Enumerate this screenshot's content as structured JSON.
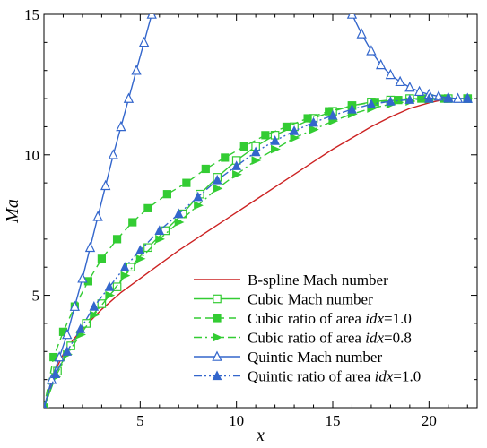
{
  "chart_data": {
    "type": "line",
    "xlabel": "x",
    "ylabel": "Ma",
    "xlim": [
      0,
      22.5
    ],
    "ylim": [
      1,
      15
    ],
    "xticks": [
      5,
      10,
      15,
      20
    ],
    "yticks": [
      5,
      10,
      15
    ],
    "grid": false,
    "legend_position": "bottom-right",
    "series": [
      {
        "name": "B-spline Mach number",
        "color": "#cc2222",
        "style": "solid",
        "marker": "none",
        "x": [
          0,
          0.5,
          1,
          1.5,
          2,
          3,
          4,
          5,
          6,
          7,
          8,
          9,
          10,
          11,
          12,
          13,
          14,
          15,
          16,
          17,
          18,
          19,
          20,
          21,
          22
        ],
        "y": [
          1,
          2.2,
          2.9,
          3.4,
          3.8,
          4.5,
          5.1,
          5.6,
          6.1,
          6.6,
          7.05,
          7.5,
          7.95,
          8.4,
          8.85,
          9.3,
          9.75,
          10.2,
          10.6,
          11.0,
          11.35,
          11.65,
          11.85,
          12.0,
          12.0
        ]
      },
      {
        "name": "Cubic Mach number",
        "color": "#33cc33",
        "style": "solid",
        "marker": "open-square",
        "x": [
          0,
          0.7,
          1.4,
          2.2,
          3,
          3.8,
          4.5,
          5.4,
          6.3,
          7.2,
          8.1,
          9,
          10,
          11,
          12,
          13,
          14,
          15,
          16,
          17,
          18,
          19,
          20,
          21,
          22
        ],
        "y": [
          1,
          2.3,
          3.2,
          4.0,
          4.7,
          5.3,
          6.0,
          6.7,
          7.3,
          7.9,
          8.6,
          9.2,
          9.8,
          10.3,
          10.7,
          11.0,
          11.3,
          11.55,
          11.75,
          11.88,
          11.95,
          12.0,
          12.0,
          12.0,
          12.0
        ]
      },
      {
        "name": "Cubic ratio of area idx=1.0",
        "color": "#33cc33",
        "style": "dashed",
        "marker": "filled-square",
        "x": [
          0,
          0.5,
          1,
          1.6,
          2.3,
          3,
          3.8,
          4.6,
          5.4,
          6.4,
          7.4,
          8.4,
          9.4,
          10.4,
          11.5,
          12.6,
          13.7,
          14.8,
          16,
          17.2,
          18.4,
          19.6,
          20.8,
          22
        ],
        "y": [
          1,
          2.8,
          3.7,
          4.6,
          5.5,
          6.3,
          7.0,
          7.6,
          8.1,
          8.6,
          9.0,
          9.5,
          9.9,
          10.3,
          10.7,
          11.0,
          11.3,
          11.55,
          11.75,
          11.88,
          11.95,
          12.0,
          12.0,
          12.0
        ]
      },
      {
        "name": "Cubic ratio of area idx=0.8",
        "color": "#33cc33",
        "style": "dashdot",
        "marker": "filled-triangle-right",
        "x": [
          0,
          0.6,
          1.2,
          1.9,
          2.6,
          3.4,
          4.2,
          5,
          6,
          7,
          8,
          9,
          10,
          11,
          12,
          13,
          14,
          15,
          16,
          17,
          18,
          19,
          20,
          21,
          22
        ],
        "y": [
          1,
          2.1,
          2.9,
          3.6,
          4.3,
          5.0,
          5.7,
          6.3,
          7.0,
          7.6,
          8.2,
          8.8,
          9.3,
          9.8,
          10.2,
          10.6,
          10.9,
          11.2,
          11.45,
          11.65,
          11.8,
          11.9,
          11.97,
          12.0,
          12.0
        ]
      },
      {
        "name": "Quintic Mach number",
        "color": "#3366cc",
        "style": "solid",
        "marker": "open-triangle",
        "x": [
          0,
          0.4,
          0.8,
          1.2,
          1.6,
          2,
          2.4,
          2.8,
          3.2,
          3.6,
          4,
          4.4,
          4.8,
          5.2,
          5.6
        ],
        "y": [
          1,
          2.0,
          2.8,
          3.6,
          4.6,
          5.6,
          6.7,
          7.8,
          8.9,
          10.0,
          11.0,
          12.0,
          13.0,
          14.0,
          15.0
        ],
        "x2": [
          16,
          16.5,
          17,
          17.5,
          18,
          18.5,
          19,
          19.5,
          20,
          20.5,
          21,
          21.5,
          22
        ],
        "y2": [
          15.0,
          14.3,
          13.7,
          13.2,
          12.85,
          12.6,
          12.4,
          12.25,
          12.15,
          12.08,
          12.03,
          12.0,
          12.0
        ]
      },
      {
        "name": "Quintic ratio of area idx=1.0",
        "color": "#3366cc",
        "style": "dashdotdot",
        "marker": "filled-triangle",
        "x": [
          0,
          0.6,
          1.2,
          1.9,
          2.6,
          3.4,
          4.2,
          5,
          6,
          7,
          8,
          9,
          10,
          11,
          12,
          13,
          14,
          15,
          16,
          17,
          18,
          19,
          20,
          21,
          22
        ],
        "y": [
          1,
          2.2,
          3.0,
          3.8,
          4.6,
          5.3,
          6.0,
          6.6,
          7.3,
          7.9,
          8.5,
          9.1,
          9.6,
          10.1,
          10.5,
          10.85,
          11.15,
          11.4,
          11.62,
          11.8,
          11.9,
          11.96,
          12.0,
          12.0,
          12.0
        ]
      }
    ],
    "legend": [
      {
        "text": "B-spline Mach number",
        "italic": ""
      },
      {
        "text": "Cubic Mach number",
        "italic": ""
      },
      {
        "text": "Cubic ratio of area ",
        "italic": "idx",
        "suffix": "=1.0"
      },
      {
        "text": "Cubic ratio of area ",
        "italic": "idx",
        "suffix": "=0.8"
      },
      {
        "text": "Quintic Mach number",
        "italic": ""
      },
      {
        "text": "Quintic ratio of area ",
        "italic": "idx",
        "suffix": "=1.0"
      }
    ]
  }
}
